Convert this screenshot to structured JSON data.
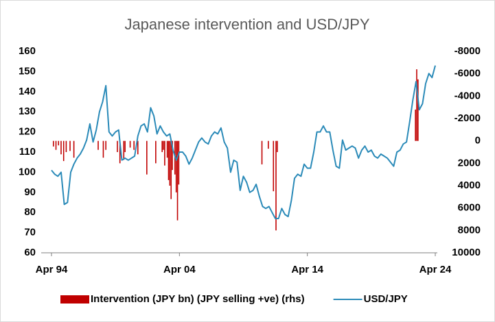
{
  "chart_data": {
    "type": "combo",
    "title": "Japanese intervention and USD/JPY",
    "xlim": [
      1994.25,
      2024.25
    ],
    "xticks": [
      {
        "value": 1994.25,
        "label": "Apr 94"
      },
      {
        "value": 2004.25,
        "label": "Apr 04"
      },
      {
        "value": 2014.25,
        "label": "Apr 14"
      },
      {
        "value": 2024.25,
        "label": "Apr 24"
      }
    ],
    "ylim": [
      60,
      160
    ],
    "yticks": [
      60,
      70,
      80,
      90,
      100,
      110,
      120,
      130,
      140,
      150,
      160
    ],
    "y2lim": [
      -8000,
      10000
    ],
    "y2ticks": [
      -8000,
      -6000,
      -4000,
      -2000,
      0,
      2000,
      4000,
      6000,
      8000,
      10000
    ],
    "y2_inverted": true,
    "legend": "bottom",
    "series": [
      {
        "name": "Intervention (JPY bn) (JPY selling +ve) (rhs)",
        "type": "bar",
        "axis": "y2",
        "color": "#c00000",
        "x": [
          1994.4,
          1994.6,
          1994.8,
          1995.0,
          1995.2,
          1995.4,
          1995.7,
          1996.0,
          1997.9,
          1998.3,
          1998.5,
          1999.4,
          1999.6,
          1999.9,
          2000.0,
          2000.4,
          2000.7,
          2001.0,
          2001.7,
          2002.4,
          2002.9,
          2003.0,
          2003.1,
          2003.3,
          2003.4,
          2003.5,
          2003.6,
          2003.7,
          2003.9,
          2004.0,
          2004.1,
          2004.2,
          2010.7,
          2011.2,
          2011.6,
          2011.8,
          2011.9,
          2022.7,
          2022.8,
          2022.9
        ],
        "values": [
          500,
          800,
          400,
          1200,
          1800,
          1000,
          900,
          1500,
          800,
          1500,
          800,
          1000,
          2000,
          1700,
          1000,
          600,
          800,
          1200,
          3000,
          2000,
          1000,
          800,
          2200,
          1500,
          3500,
          4000,
          5200,
          2600,
          3000,
          4600,
          7100,
          3900,
          2100,
          700,
          4500,
          8000,
          1000,
          -2800,
          -6400,
          -5500
        ]
      },
      {
        "name": "USD/JPY",
        "type": "line",
        "color": "#2a8ab8",
        "x": [
          1994.25,
          1994.5,
          1994.75,
          1995,
          1995.25,
          1995.5,
          1995.75,
          1996,
          1996.25,
          1996.5,
          1996.75,
          1997,
          1997.25,
          1997.5,
          1997.75,
          1998,
          1998.25,
          1998.5,
          1998.75,
          1999,
          1999.25,
          1999.5,
          1999.75,
          2000,
          2000.25,
          2000.5,
          2000.75,
          2001,
          2001.25,
          2001.5,
          2001.75,
          2002,
          2002.25,
          2002.5,
          2002.75,
          2003,
          2003.25,
          2003.5,
          2003.75,
          2004,
          2004.25,
          2004.5,
          2004.75,
          2005,
          2005.25,
          2005.5,
          2005.75,
          2006,
          2006.25,
          2006.5,
          2006.75,
          2007,
          2007.25,
          2007.5,
          2007.75,
          2008,
          2008.25,
          2008.5,
          2008.75,
          2009,
          2009.25,
          2009.5,
          2009.75,
          2010,
          2010.25,
          2010.5,
          2010.75,
          2011,
          2011.25,
          2011.5,
          2011.75,
          2012,
          2012.25,
          2012.5,
          2012.75,
          2013,
          2013.25,
          2013.5,
          2013.75,
          2014,
          2014.25,
          2014.5,
          2014.75,
          2015,
          2015.25,
          2015.5,
          2015.75,
          2016,
          2016.25,
          2016.5,
          2016.75,
          2017,
          2017.25,
          2017.5,
          2017.75,
          2018,
          2018.25,
          2018.5,
          2018.75,
          2019,
          2019.25,
          2019.5,
          2019.75,
          2020,
          2020.25,
          2020.5,
          2020.75,
          2021,
          2021.25,
          2021.5,
          2021.75,
          2022,
          2022.25,
          2022.5,
          2022.75,
          2023,
          2023.25,
          2023.5,
          2023.75,
          2024,
          2024.25
        ],
        "values": [
          101,
          99,
          98,
          100,
          84,
          85,
          100,
          104,
          107,
          109,
          112,
          116,
          124,
          115,
          121,
          130,
          135,
          143,
          120,
          118,
          120,
          121,
          106,
          107,
          106,
          107,
          108,
          118,
          123,
          124,
          120,
          132,
          128,
          119,
          123,
          120,
          118,
          119,
          111,
          106,
          110,
          110,
          108,
          104,
          107,
          111,
          115,
          117,
          115,
          114,
          118,
          120,
          119,
          122,
          115,
          112,
          100,
          106,
          105,
          91,
          98,
          95,
          90,
          91,
          94,
          88,
          83,
          82,
          83,
          80,
          77,
          77,
          82,
          79,
          78,
          86,
          97,
          99,
          98,
          104,
          102,
          102,
          110,
          120,
          120,
          123,
          120,
          120,
          111,
          103,
          102,
          116,
          111,
          112,
          113,
          112,
          107,
          111,
          113,
          110,
          111,
          108,
          107,
          109,
          108,
          107,
          105,
          103,
          110,
          111,
          114,
          115,
          125,
          136,
          145,
          131,
          134,
          144,
          149,
          147,
          153
        ]
      }
    ]
  }
}
